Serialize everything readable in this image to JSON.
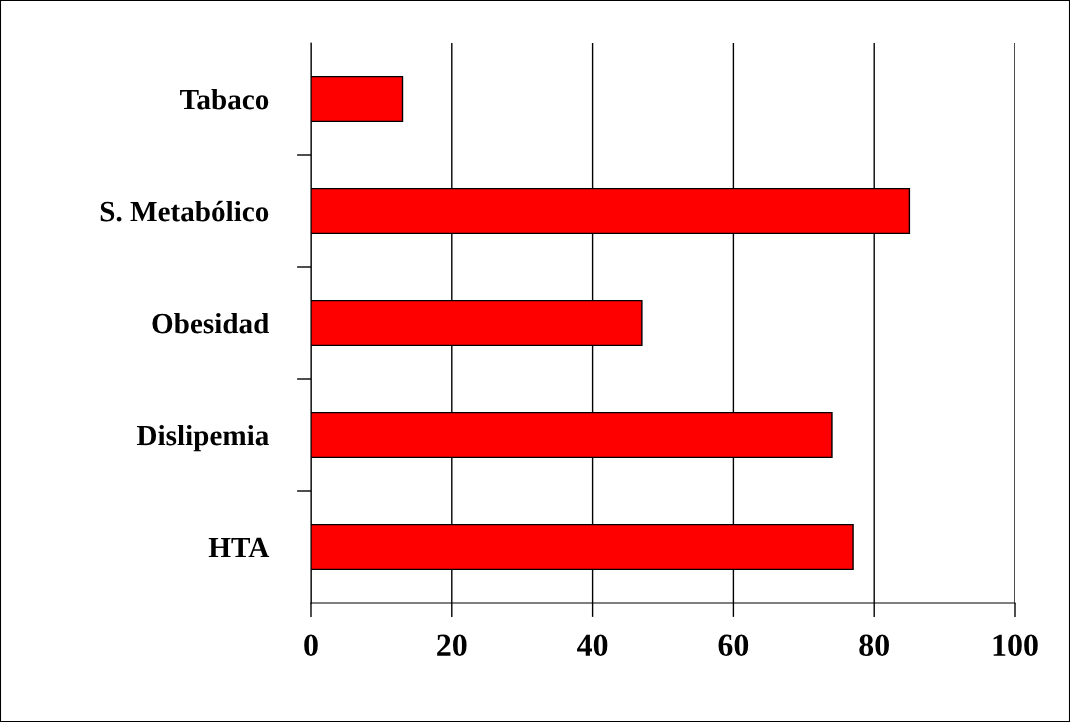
{
  "chart_data": {
    "type": "bar",
    "orientation": "horizontal",
    "categories": [
      "Tabaco",
      "S. Metabólico",
      "Obesidad",
      "Dislipemia",
      "HTA"
    ],
    "values": [
      13,
      85,
      47,
      74,
      77
    ],
    "color": "#ff0000",
    "xlim": [
      0,
      100
    ],
    "xticks": [
      0,
      20,
      40,
      60,
      80,
      100
    ],
    "grid": "x",
    "legend": false
  }
}
